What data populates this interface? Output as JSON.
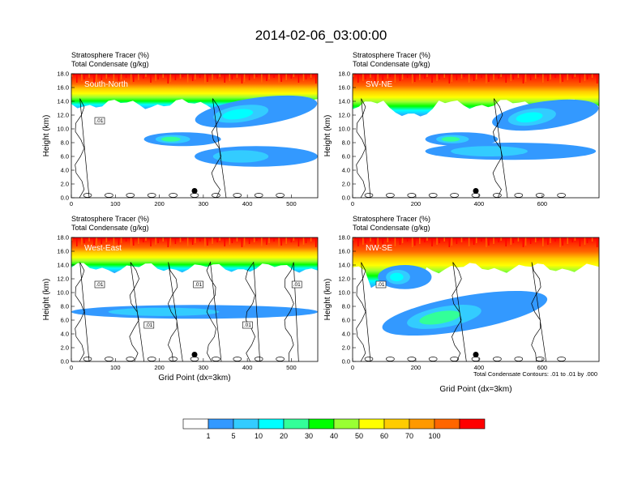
{
  "title": "2014-02-06_03:00:00",
  "colors": [
    "#ffffff",
    "#3399ff",
    "#33ccff",
    "#00ffff",
    "#33ff99",
    "#00ff00",
    "#99ff33",
    "#ffff00",
    "#ffcc00",
    "#ff9900",
    "#ff6600",
    "#ff0000"
  ],
  "colorbar_labels": [
    "1",
    "5",
    "10",
    "20",
    "30",
    "40",
    "50",
    "60",
    "70",
    "100"
  ],
  "contour_note": "Total Condensate Contours: .01 to .01 by .000",
  "chart_data": [
    {
      "type": "heatmap",
      "panel_label": "South-North",
      "subtitle_line1": "Stratosphere Tracer   (%)",
      "subtitle_line2": "Total Condensate   (g/kg)",
      "ylabel": "Height (km)",
      "xlabel": "",
      "xlim": [
        0,
        560
      ],
      "ylim": [
        0,
        18
      ],
      "xticks": [
        "0",
        "100",
        "200",
        "300",
        "400",
        "500"
      ],
      "yticks": [
        "0.0",
        "2.0",
        "4.0",
        "6.0",
        "8.0",
        "10.0",
        "12.0",
        "14.0",
        "16.0",
        "18.0"
      ],
      "tracer_blobs": [
        {
          "x": [
            165,
            340
          ],
          "y": [
            7.5,
            9.5
          ],
          "level": "20-30"
        },
        {
          "x": [
            280,
            560
          ],
          "y": [
            4.5,
            7.5
          ],
          "level": "1-5"
        },
        {
          "x": [
            280,
            560
          ],
          "y": [
            10.5,
            14.5
          ],
          "level": "5-20"
        }
      ],
      "contour_labels": [
        ".01"
      ],
      "marker": {
        "x": 280,
        "y": 1.0
      }
    },
    {
      "type": "heatmap",
      "panel_label": "SW-NE",
      "subtitle_line1": "Stratosphere Tracer   (%)",
      "subtitle_line2": "Total Condensate   (g/kg)",
      "ylabel": "Height (km)",
      "xlabel": "",
      "xlim": [
        0,
        780
      ],
      "ylim": [
        0,
        18
      ],
      "xticks": [
        "0",
        "200",
        "400",
        "600"
      ],
      "yticks": [
        "0.0",
        "2.0",
        "4.0",
        "6.0",
        "8.0",
        "10.0",
        "12.0",
        "14.0",
        "16.0",
        "18.0"
      ],
      "tracer_blobs": [
        {
          "x": [
            230,
            460
          ],
          "y": [
            7.5,
            9.5
          ],
          "level": "20-30"
        },
        {
          "x": [
            230,
            770
          ],
          "y": [
            5.5,
            8
          ],
          "level": "1-5"
        },
        {
          "x": [
            440,
            780
          ],
          "y": [
            10,
            14
          ],
          "level": "5-20"
        }
      ],
      "contour_labels": [],
      "marker": {
        "x": 390,
        "y": 1.0
      }
    },
    {
      "type": "heatmap",
      "panel_label": "West-East",
      "subtitle_line1": "Stratosphere Tracer   (%)",
      "subtitle_line2": "Total Condensate   (g/kg)",
      "ylabel": "Height (km)",
      "xlabel": "Grid Point (dx=3km)",
      "xlim": [
        0,
        560
      ],
      "ylim": [
        0,
        18
      ],
      "xticks": [
        "0",
        "100",
        "200",
        "300",
        "400",
        "500"
      ],
      "yticks": [
        "0.0",
        "2.0",
        "4.0",
        "6.0",
        "8.0",
        "10.0",
        "12.0",
        "14.0",
        "16.0",
        "18.0"
      ],
      "tracer_blobs": [
        {
          "x": [
            0,
            560
          ],
          "y": [
            6.2,
            8.2
          ],
          "level": "1-5"
        }
      ],
      "contour_labels": [
        ".01",
        ".01",
        ".01",
        ".01",
        ".01"
      ],
      "marker": {
        "x": 280,
        "y": 1.0
      }
    },
    {
      "type": "heatmap",
      "panel_label": "NW-SE",
      "subtitle_line1": "Stratosphere Tracer   (%)",
      "subtitle_line2": "Total Condensate   (g/kg)",
      "ylabel": "Height (km)",
      "xlabel": "Grid Point (dx=3km)",
      "xlim": [
        0,
        780
      ],
      "ylim": [
        0,
        18
      ],
      "xticks": [
        "0",
        "200",
        "400",
        "600"
      ],
      "yticks": [
        "0.0",
        "2.0",
        "4.0",
        "6.0",
        "8.0",
        "10.0",
        "12.0",
        "14.0",
        "16.0",
        "18.0"
      ],
      "tracer_blobs": [
        {
          "x": [
            90,
            620
          ],
          "y": [
            4.5,
            9.5
          ],
          "level": "1-30"
        },
        {
          "x": [
            80,
            250
          ],
          "y": [
            10.5,
            14
          ],
          "level": "5-20"
        }
      ],
      "contour_labels": [
        ".01"
      ],
      "marker": {
        "x": 390,
        "y": 1.0
      }
    }
  ]
}
